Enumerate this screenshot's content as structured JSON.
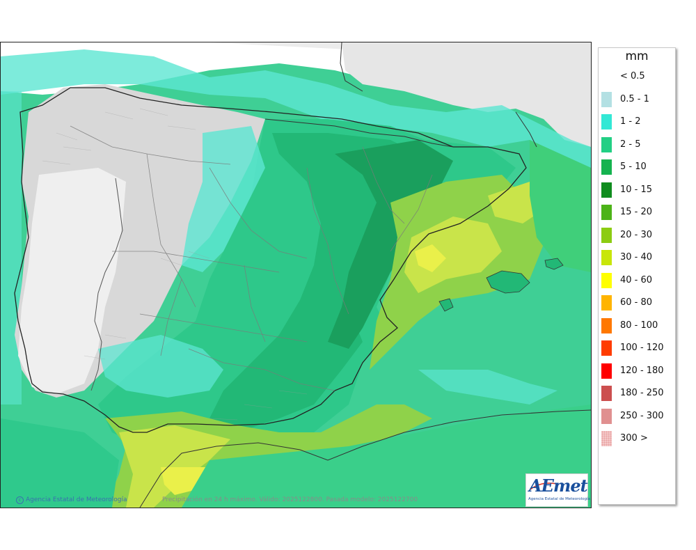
{
  "legend": {
    "unit": "mm",
    "items": [
      {
        "label": "< 0.5",
        "color": "#ffffff"
      },
      {
        "label": "0.5 - 1",
        "color": "#b3e0e3"
      },
      {
        "label": "1 - 2",
        "color": "#33e8d5"
      },
      {
        "label": "2 - 5",
        "color": "#22cf84"
      },
      {
        "label": "5 - 10",
        "color": "#15b34f"
      },
      {
        "label": "10 - 15",
        "color": "#0f8c1e"
      },
      {
        "label": "15 - 20",
        "color": "#4cb318"
      },
      {
        "label": "20 - 30",
        "color": "#8ccc12"
      },
      {
        "label": "30 - 40",
        "color": "#c8e60a"
      },
      {
        "label": "40 - 60",
        "color": "#ffff00"
      },
      {
        "label": "60 - 80",
        "color": "#ffb400"
      },
      {
        "label": "80 - 100",
        "color": "#ff7800"
      },
      {
        "label": "100 - 120",
        "color": "#ff3c00"
      },
      {
        "label": "120 - 180",
        "color": "#ff0000"
      },
      {
        "label": "180 - 250",
        "color": "#cc4f4f"
      },
      {
        "label": "250 - 300",
        "color": "#e09090"
      },
      {
        "label": "300 >",
        "color": "#f4c8c8"
      }
    ]
  },
  "footer": {
    "credit_symbol": "c",
    "credit": "Agencia Estatal de Meteorología",
    "caption": "Precipitación en 24 h máximo. Válido: 2025122800. Pasada modelo: 2025122700"
  },
  "logo": {
    "first_letter": "A",
    "rest": "Emet",
    "subtitle": "Agencia Estatal de Meteorología"
  }
}
